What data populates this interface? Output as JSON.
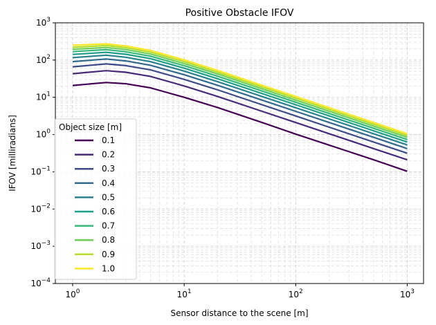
{
  "chart_data": {
    "type": "line",
    "title": "Positive Obstacle IFOV",
    "xlabel": "Sensor distance to the scene [m]",
    "ylabel": "IFOV [milliradians]",
    "xscale": "log",
    "yscale": "log",
    "xlim": [
      0.7,
      1400
    ],
    "ylim": [
      0.0001,
      1000
    ],
    "xticks": [
      {
        "value": 1,
        "base": "10",
        "exp": "0"
      },
      {
        "value": 10,
        "base": "10",
        "exp": "1"
      },
      {
        "value": 100,
        "base": "10",
        "exp": "2"
      },
      {
        "value": 1000,
        "base": "10",
        "exp": "3"
      }
    ],
    "yticks": [
      {
        "value": 0.0001,
        "base": "10",
        "exp": "−4"
      },
      {
        "value": 0.001,
        "base": "10",
        "exp": "−3"
      },
      {
        "value": 0.01,
        "base": "10",
        "exp": "−2"
      },
      {
        "value": 0.1,
        "base": "10",
        "exp": "−1"
      },
      {
        "value": 1,
        "base": "10",
        "exp": "0"
      },
      {
        "value": 10,
        "base": "10",
        "exp": "1"
      },
      {
        "value": 100,
        "base": "10",
        "exp": "2"
      },
      {
        "value": 1000,
        "base": "10",
        "exp": "3"
      }
    ],
    "grid": true,
    "grid_which": "both",
    "legend_title": "Object size [m]",
    "legend_position": "lower-left",
    "x": [
      1,
      2,
      3,
      5,
      10,
      20,
      50,
      100,
      200,
      500,
      1000
    ],
    "series": [
      {
        "name": "0.1",
        "color": "#440154",
        "values": [
          20.8,
          25.0,
          23.1,
          17.9,
          10.0,
          5.3,
          2.1,
          1.03,
          0.52,
          0.21,
          0.103
        ]
      },
      {
        "name": "0.2",
        "color": "#482878",
        "values": [
          43.0,
          52.0,
          47.0,
          36.3,
          20.2,
          10.5,
          4.2,
          2.1,
          1.05,
          0.42,
          0.21
        ]
      },
      {
        "name": "0.3",
        "color": "#3e4989",
        "values": [
          66.0,
          79.0,
          71.0,
          54.5,
          30.3,
          15.8,
          6.3,
          3.15,
          1.57,
          0.63,
          0.315
        ]
      },
      {
        "name": "0.4",
        "color": "#31688e",
        "values": [
          91.0,
          107.0,
          95.0,
          72.5,
          40.4,
          21.0,
          8.4,
          4.2,
          2.1,
          0.84,
          0.42
        ]
      },
      {
        "name": "0.5",
        "color": "#26828e",
        "values": [
          116.0,
          135.0,
          119.0,
          90.5,
          50.5,
          26.2,
          10.5,
          5.25,
          2.62,
          1.05,
          0.525
        ]
      },
      {
        "name": "0.6",
        "color": "#1f9e89",
        "values": [
          142.0,
          162.0,
          143.0,
          109.0,
          60.5,
          31.5,
          12.6,
          6.3,
          3.15,
          1.26,
          0.63
        ]
      },
      {
        "name": "0.7",
        "color": "#35b779",
        "values": [
          168.0,
          190.0,
          167.0,
          127.0,
          70.6,
          36.7,
          14.7,
          7.35,
          3.67,
          1.47,
          0.735
        ]
      },
      {
        "name": "0.8",
        "color": "#6ece58",
        "values": [
          194.0,
          217.0,
          191.0,
          145.0,
          80.7,
          42.0,
          16.8,
          8.4,
          4.2,
          1.68,
          0.84
        ]
      },
      {
        "name": "0.9",
        "color": "#b5de2b",
        "values": [
          220.0,
          245.0,
          215.0,
          163.0,
          90.8,
          47.2,
          18.9,
          9.45,
          4.72,
          1.89,
          0.945
        ]
      },
      {
        "name": "1.0",
        "color": "#fde725",
        "values": [
          250.0,
          272.0,
          239.0,
          181.0,
          101.0,
          52.5,
          21.0,
          10.5,
          5.25,
          2.1,
          1.05
        ]
      }
    ]
  }
}
